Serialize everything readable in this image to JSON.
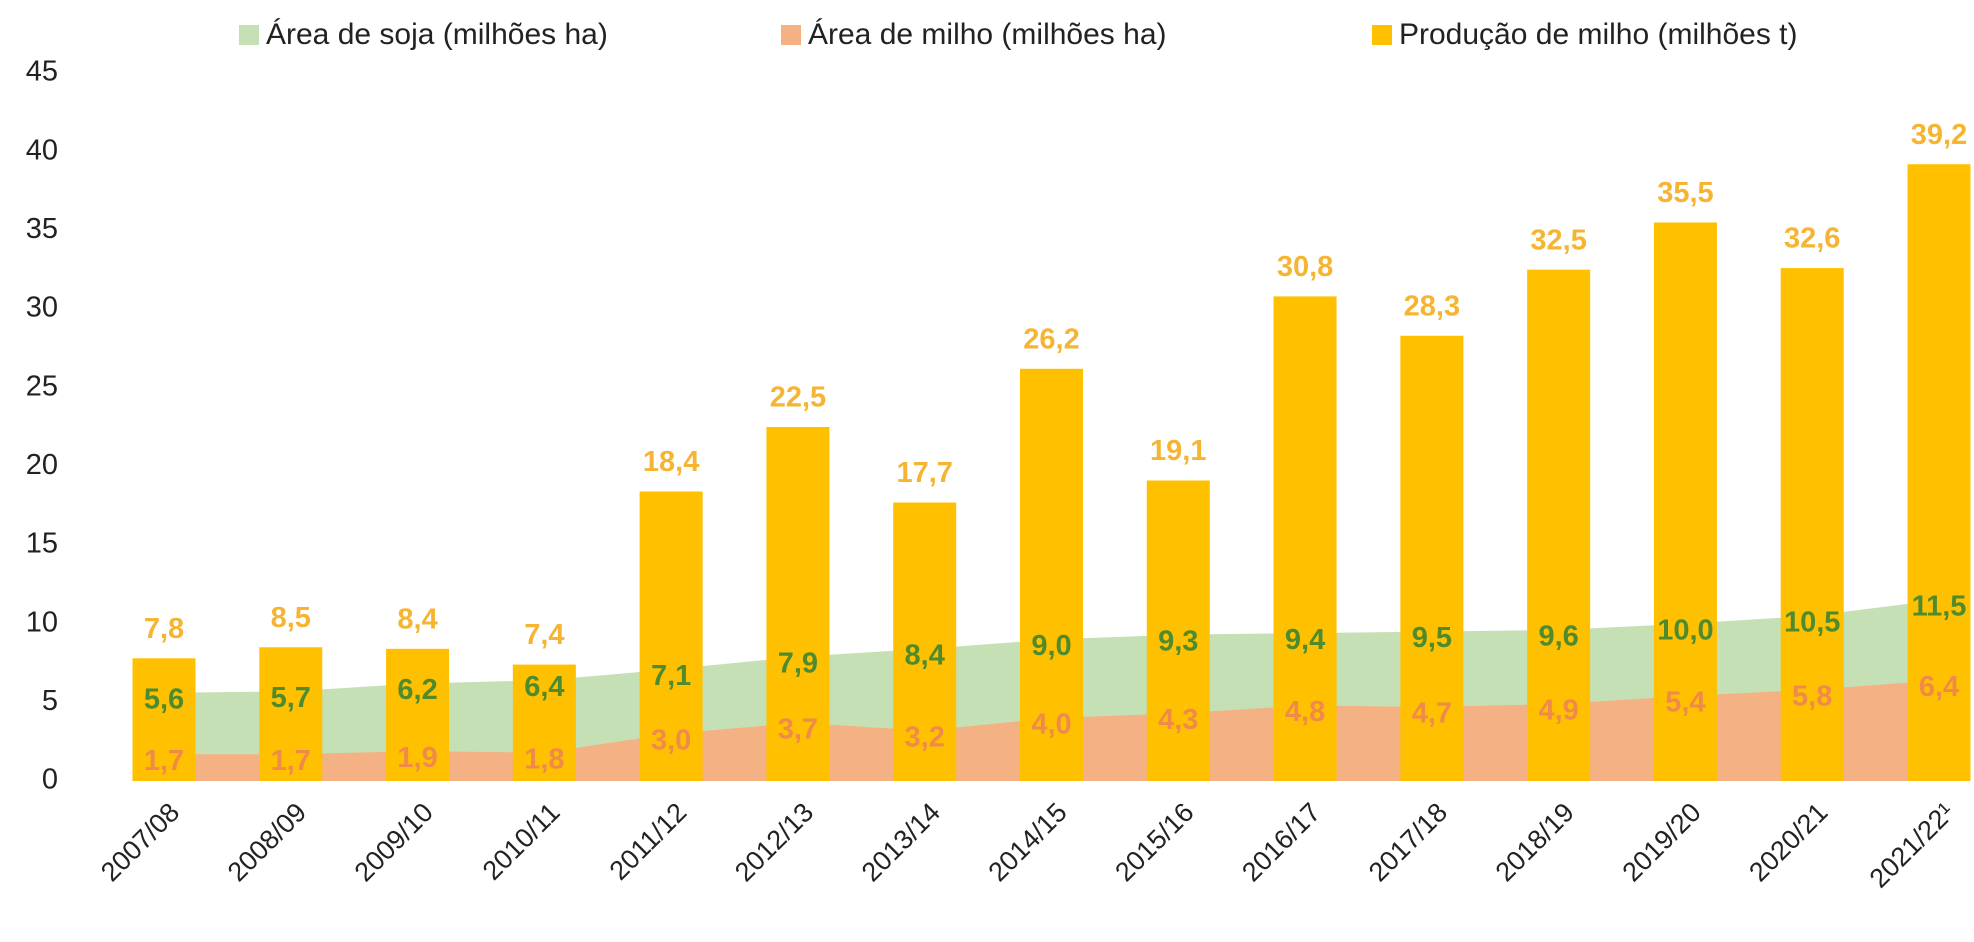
{
  "chart_data": {
    "type": "bar",
    "categories": [
      "2007/08",
      "2008/09",
      "2009/10",
      "2010/11",
      "2011/12",
      "2012/13",
      "2013/14",
      "2014/15",
      "2015/16",
      "2016/17",
      "2017/18",
      "2018/19",
      "2019/20",
      "2020/21",
      "2021/22¹"
    ],
    "series": [
      {
        "name": "Área de soja (milhões ha)",
        "type": "area",
        "color": "#c5e0b4",
        "label_color": "#4e8a2e",
        "values": [
          5.6,
          5.7,
          6.2,
          6.4,
          7.1,
          7.9,
          8.4,
          9.0,
          9.3,
          9.4,
          9.5,
          9.6,
          10.0,
          10.5,
          11.5
        ],
        "value_labels": [
          "5,6",
          "5,7",
          "6,2",
          "6,4",
          "7,1",
          "7,9",
          "8,4",
          "9,0",
          "9,3",
          "9,4",
          "9,5",
          "9,6",
          "10,0",
          "10,5",
          "11,5"
        ]
      },
      {
        "name": "Área de milho (milhões ha)",
        "type": "area",
        "color": "#f4b183",
        "label_color": "#f08a4b",
        "values": [
          1.7,
          1.7,
          1.9,
          1.8,
          3.0,
          3.7,
          3.2,
          4.0,
          4.3,
          4.8,
          4.7,
          4.9,
          5.4,
          5.8,
          6.4
        ],
        "value_labels": [
          "1,7",
          "1,7",
          "1,9",
          "1,8",
          "3,0",
          "3,7",
          "3,2",
          "4,0",
          "4,3",
          "4,8",
          "4,7",
          "4,9",
          "5,4",
          "5,8",
          "6,4"
        ]
      },
      {
        "name": "Produção de milho (milhões t)",
        "type": "bar",
        "color": "#ffc000",
        "label_color": "#f5b533",
        "values": [
          7.8,
          8.5,
          8.4,
          7.4,
          18.4,
          22.5,
          17.7,
          26.2,
          19.1,
          30.8,
          28.3,
          32.5,
          35.5,
          32.6,
          39.2
        ],
        "value_labels": [
          "7,8",
          "8,5",
          "8,4",
          "7,4",
          "18,4",
          "22,5",
          "17,7",
          "26,2",
          "19,1",
          "30,8",
          "28,3",
          "32,5",
          "35,5",
          "32,6",
          "39,2"
        ]
      }
    ],
    "ylim": [
      0,
      45
    ],
    "yticks": [
      0,
      5,
      10,
      15,
      20,
      25,
      30,
      35,
      40,
      45
    ],
    "grid": false,
    "legend": "top"
  }
}
